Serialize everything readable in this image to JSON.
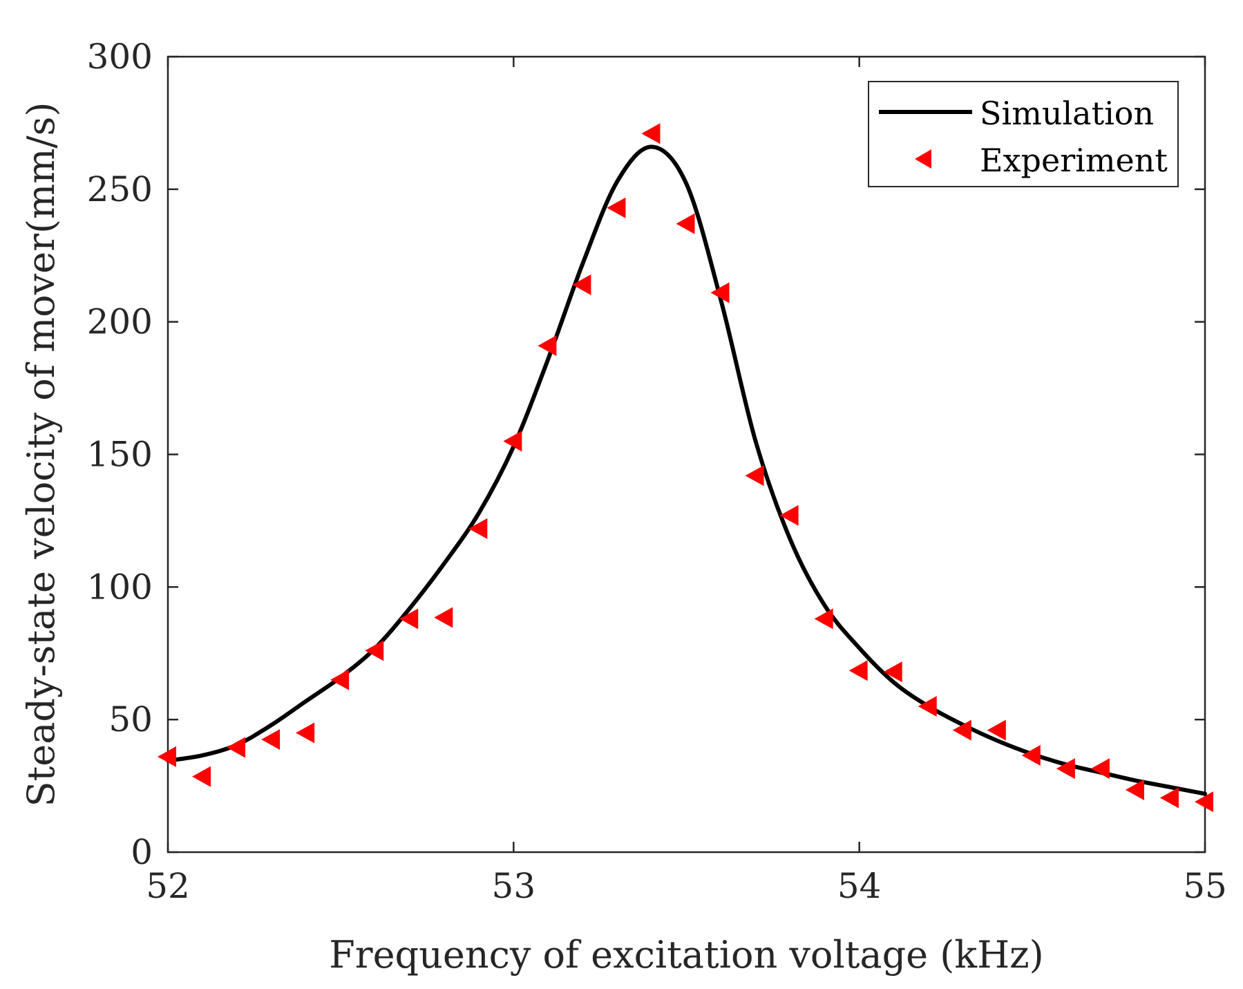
{
  "chart_data": {
    "type": "line",
    "title": "",
    "xlabel": "Frequency of excitation voltage (kHz)",
    "ylabel": "Steady-state velocity of mover(mm/s)",
    "xlim": [
      52,
      55
    ],
    "ylim": [
      0,
      300
    ],
    "xticks": [
      52,
      53,
      54,
      55
    ],
    "yticks": [
      0,
      50,
      100,
      150,
      200,
      250,
      300
    ],
    "xtick_labels": [
      "52",
      "53",
      "54",
      "55"
    ],
    "ytick_labels": [
      "0",
      "50",
      "100",
      "150",
      "200",
      "250",
      "300"
    ],
    "grid": false,
    "legend_position": "top-right",
    "legend": [
      "Simulation",
      "Experiment"
    ],
    "series": [
      {
        "name": "Simulation",
        "style": "line",
        "color": "#000000",
        "x": [
          52.0,
          52.1,
          52.2,
          52.3,
          52.4,
          52.5,
          52.6,
          52.7,
          52.8,
          52.9,
          53.0,
          53.1,
          53.2,
          53.3,
          53.4,
          53.5,
          53.6,
          53.7,
          53.8,
          53.9,
          54.0,
          54.1,
          54.2,
          54.3,
          54.4,
          54.5,
          54.6,
          54.7,
          54.8,
          54.9,
          55.0
        ],
        "y": [
          34.5,
          36.5,
          40.5,
          48,
          57,
          66,
          77,
          92,
          109,
          128,
          153,
          186,
          222,
          253,
          266,
          252,
          208,
          155,
          118,
          93,
          77,
          64,
          55,
          48,
          42,
          37,
          33,
          30,
          27,
          24.5,
          22
        ]
      },
      {
        "name": "Experiment",
        "style": "marker",
        "marker": "triangle-left",
        "color": "#ff0000",
        "x": [
          52.0,
          52.1,
          52.2,
          52.3,
          52.4,
          52.5,
          52.6,
          52.7,
          52.8,
          52.9,
          53.0,
          53.1,
          53.2,
          53.3,
          53.4,
          53.5,
          53.6,
          53.7,
          53.8,
          53.9,
          54.0,
          54.1,
          54.2,
          54.3,
          54.4,
          54.5,
          54.6,
          54.7,
          54.8,
          54.9,
          55.0
        ],
        "y": [
          36,
          28.5,
          39.5,
          42.5,
          45,
          65,
          76,
          88,
          88.5,
          122,
          155,
          191,
          214,
          243,
          271,
          237,
          211,
          142,
          127,
          88,
          68.5,
          68,
          55,
          46,
          46,
          36.5,
          31.5,
          31.5,
          23.5,
          20.5,
          19
        ]
      }
    ]
  }
}
